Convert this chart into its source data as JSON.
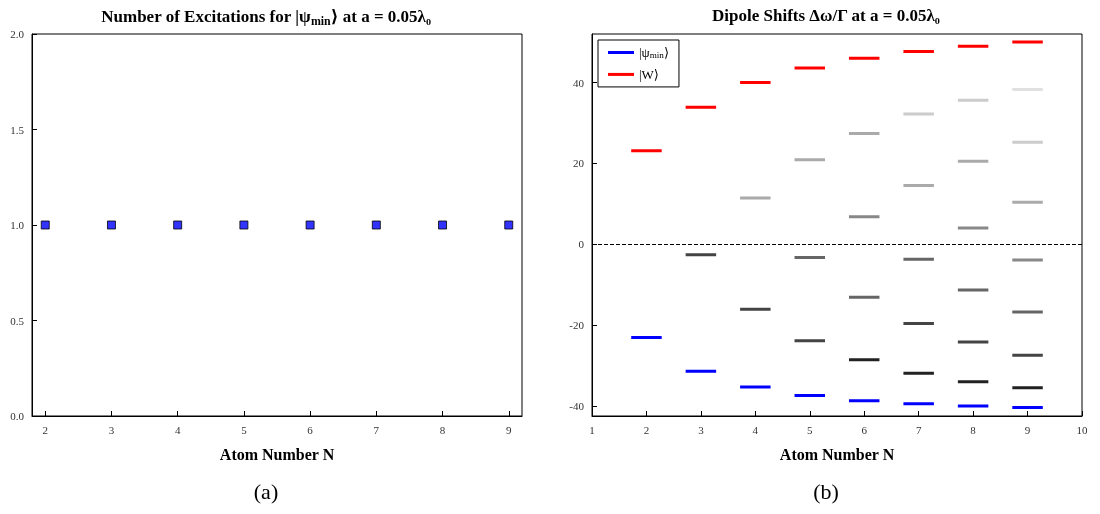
{
  "chart_data": [
    {
      "type": "scatter",
      "title": "Number of Excitations for |ψ$_{min}$⟩ at a = 0.05λ₀",
      "xlabel": "Atom Number N",
      "annotations": [
        "(a)"
      ],
      "x": [
        2,
        3,
        4,
        5,
        6,
        7,
        8,
        9
      ],
      "series": [
        {
          "color": "#0000ff",
          "values": [
            1,
            1,
            1,
            1,
            1,
            1,
            1,
            1
          ]
        }
      ],
      "xlim": [
        1.8,
        9.2
      ],
      "xticks": [
        2,
        3,
        4,
        5,
        6,
        7,
        8,
        9
      ],
      "ylim": [
        0,
        2
      ],
      "yticks": [
        {
          "value": 0,
          "label": "0.0"
        },
        {
          "value": 0.5,
          "label": "0.5"
        },
        {
          "value": 1,
          "label": "1.0"
        },
        {
          "value": 1.5,
          "label": "1.5"
        },
        {
          "value": 2,
          "label": "2.0"
        }
      ],
      "marker": "square",
      "grid": false,
      "legend": false
    },
    {
      "type": "line",
      "title": "Dipole Shifts Δω/Γ at a = 0.05λ₀",
      "xlabel": "Atom Number N",
      "annotations": [
        "(b)"
      ],
      "series": [
        {
          "name": "|ψ$_{min}$⟩",
          "color": "#0000ff",
          "x": [
            1.72,
            2.28,
            null,
            2.72,
            3.28,
            null,
            3.72,
            4.28,
            null,
            4.72,
            5.28,
            null,
            5.72,
            6.28,
            null,
            6.72,
            7.28,
            null,
            7.72,
            8.28,
            null,
            8.72,
            9.28
          ],
          "values": [
            -23.1,
            -23.1,
            null,
            -31.4,
            -31.4,
            null,
            -35.3,
            -35.3,
            null,
            -37.4,
            -37.4,
            null,
            -38.7,
            -38.7,
            null,
            -39.5,
            -39.5,
            null,
            -40.0,
            -40.0,
            null,
            -40.4,
            -40.4
          ]
        },
        {
          "name": "|W⟩",
          "color": "#ff0000",
          "x": [
            1.72,
            2.28,
            null,
            2.72,
            3.28,
            null,
            3.72,
            4.28,
            null,
            4.72,
            5.28,
            null,
            5.72,
            6.28,
            null,
            6.72,
            7.28,
            null,
            7.72,
            8.28,
            null,
            8.72,
            9.28
          ],
          "values": [
            23.1,
            23.1,
            null,
            33.9,
            33.9,
            null,
            40.0,
            40.0,
            null,
            43.6,
            43.6,
            null,
            46.0,
            46.0,
            null,
            47.7,
            47.7,
            null,
            49.0,
            49.0,
            null,
            50.0,
            50.0
          ]
        },
        {
          "color": "#e0e0e0",
          "x": [
            8.72,
            9.28
          ],
          "values": [
            38.3,
            38.3
          ]
        },
        {
          "color": "#cccccc",
          "x": [
            6.72,
            7.28,
            null,
            7.72,
            8.28,
            null,
            8.72,
            9.28
          ],
          "values": [
            32.2,
            32.2,
            null,
            35.6,
            35.6,
            null,
            25.2,
            25.2
          ]
        },
        {
          "color": "#aaaaaa",
          "x": [
            3.72,
            4.28,
            null,
            4.72,
            5.28,
            null,
            5.72,
            6.28,
            null,
            6.72,
            7.28,
            null,
            7.72,
            8.28,
            null,
            8.72,
            9.28
          ],
          "values": [
            11.4,
            11.4,
            null,
            20.9,
            20.9,
            null,
            27.4,
            27.4,
            null,
            14.5,
            14.5,
            null,
            20.5,
            20.5,
            null,
            10.4,
            10.4
          ]
        },
        {
          "color": "#888888",
          "x": [
            5.72,
            6.28,
            null,
            7.72,
            8.28,
            null,
            8.72,
            9.28
          ],
          "values": [
            6.8,
            6.8,
            null,
            4.0,
            4.0,
            null,
            -3.9,
            -3.9
          ]
        },
        {
          "color": "#666666",
          "x": [
            4.72,
            5.28,
            null,
            5.72,
            6.28,
            null,
            6.72,
            7.28,
            null,
            7.72,
            8.28,
            null,
            8.72,
            9.28
          ],
          "values": [
            -3.3,
            -3.3,
            null,
            -13.1,
            -13.1,
            null,
            -3.7,
            -3.7,
            null,
            -11.3,
            -11.3,
            null,
            -16.8,
            -16.8
          ]
        },
        {
          "color": "#444444",
          "x": [
            2.72,
            3.28,
            null,
            3.72,
            4.28,
            null,
            4.72,
            5.28,
            null,
            6.72,
            7.28,
            null,
            7.72,
            8.28,
            null,
            8.72,
            9.28
          ],
          "values": [
            -2.6,
            -2.6,
            null,
            -16.1,
            -16.1,
            null,
            -23.9,
            -23.9,
            null,
            -19.6,
            -19.6,
            null,
            -24.2,
            -24.2,
            null,
            -27.5,
            -27.5
          ]
        },
        {
          "color": "#222222",
          "x": [
            5.72,
            6.28,
            null,
            6.72,
            7.28,
            null,
            7.72,
            8.28,
            null,
            8.72,
            9.28
          ],
          "values": [
            -28.6,
            -28.6,
            null,
            -31.9,
            -31.9,
            null,
            -34.0,
            -34.0,
            null,
            -35.5,
            -35.5
          ]
        }
      ],
      "xlim": [
        1,
        10
      ],
      "xticks": [
        1,
        2,
        3,
        4,
        5,
        6,
        7,
        8,
        9,
        10
      ],
      "ylim": [
        -42.5,
        52
      ],
      "yticks": [
        -40,
        -20,
        0,
        20,
        40
      ],
      "ref_lines": [
        {
          "axis": "y",
          "value": 0,
          "color": "#000000",
          "line_style": "dashed"
        }
      ],
      "line_style": "solid",
      "grid": false,
      "legend": "top left"
    }
  ]
}
